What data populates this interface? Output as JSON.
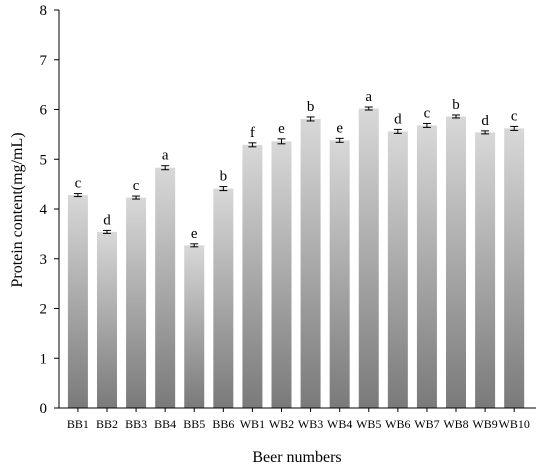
{
  "chart_data": {
    "type": "bar",
    "xlabel": "Beer numbers",
    "ylabel": "Protein content(mg/mL)",
    "ylim": [
      0,
      8
    ],
    "yticks": [
      "0",
      "1",
      "2",
      "3",
      "4",
      "5",
      "6",
      "7",
      "8"
    ],
    "categories": [
      "BB1",
      "BB2",
      "BB3",
      "BB4",
      "BB5",
      "BB6",
      "WB1",
      "WB2",
      "WB3",
      "WB4",
      "WB5",
      "WB6",
      "WB7",
      "WB8",
      "WB9",
      "WB10"
    ],
    "values": [
      4.28,
      3.54,
      4.23,
      4.83,
      3.27,
      4.41,
      5.29,
      5.36,
      5.81,
      5.38,
      6.02,
      5.56,
      5.68,
      5.86,
      5.54,
      5.62
    ],
    "errors": [
      0.03,
      0.03,
      0.03,
      0.04,
      0.03,
      0.04,
      0.04,
      0.05,
      0.04,
      0.04,
      0.03,
      0.04,
      0.04,
      0.03,
      0.03,
      0.04
    ],
    "significance_labels": [
      "c",
      "d",
      "c",
      "a",
      "e",
      "b",
      "f",
      "e",
      "b",
      "e",
      "a",
      "d",
      "c",
      "b",
      "d",
      "c"
    ],
    "bar_fill": "vertical gradient, light gray top to dark gray bottom",
    "colors": {
      "bar_top": "#d8d8d8",
      "bar_bottom": "#7a7a7a",
      "axis": "#000000"
    }
  }
}
